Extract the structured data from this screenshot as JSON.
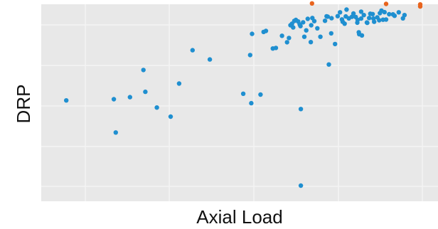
{
  "chart_data": {
    "type": "scatter",
    "title": "",
    "xlabel": "Axial Load",
    "ylabel": "DRP",
    "xlim": [
      0,
      100
    ],
    "ylim": [
      0,
      100
    ],
    "grid": true,
    "background": "#e8e8e8",
    "grid_color": "#f4f4f4",
    "series": [
      {
        "color": "#1f8fd0",
        "points": [
          [
            5.4,
            49.9
          ],
          [
            17.8,
            50.6
          ],
          [
            18.3,
            31.3
          ],
          [
            22,
            51.8
          ],
          [
            25.5,
            67.6
          ],
          [
            26,
            54.9
          ],
          [
            29,
            45.8
          ],
          [
            32.6,
            40.5
          ],
          [
            34.8,
            59.7
          ],
          [
            38.3,
            79.1
          ],
          [
            42.8,
            73.7
          ],
          [
            51.5,
            53.8
          ],
          [
            53.3,
            76.3
          ],
          [
            53.6,
            48.3
          ],
          [
            53.8,
            88.6
          ],
          [
            56,
            53.3
          ],
          [
            56.8,
            89.7
          ],
          [
            57.4,
            90.3
          ],
          [
            59.2,
            80.1
          ],
          [
            60,
            80.4
          ],
          [
            61.6,
            87.5
          ],
          [
            62.9,
            83.7
          ],
          [
            63.4,
            86.2
          ],
          [
            63.8,
            93.6
          ],
          [
            64.2,
            94.5
          ],
          [
            64.5,
            92.3
          ],
          [
            64.8,
            96.1
          ],
          [
            65.2,
            96.7
          ],
          [
            65.8,
            95.8
          ],
          [
            66.2,
            94.1
          ],
          [
            66.4,
            93.1
          ],
          [
            66.5,
            44.9
          ],
          [
            66.5,
            0.4
          ],
          [
            67.1,
            95.3
          ],
          [
            67.4,
            86.9
          ],
          [
            67.9,
            90.6
          ],
          [
            68.3,
            97.3
          ],
          [
            69.1,
            83.8
          ],
          [
            69.2,
            93.6
          ],
          [
            69.5,
            97.8
          ],
          [
            70,
            96
          ],
          [
            70.8,
            91.8
          ],
          [
            71.6,
            86.9
          ],
          [
            72.8,
            96.2
          ],
          [
            73.2,
            98.8
          ],
          [
            73.5,
            98.6
          ],
          [
            73.8,
            70.8
          ],
          [
            74.4,
            88.9
          ],
          [
            74.5,
            97.7
          ],
          [
            75.4,
            82.7
          ],
          [
            76.1,
            98.9
          ],
          [
            76.7,
            101.1
          ],
          [
            77.2,
            97
          ],
          [
            77.4,
            95.6
          ],
          [
            77.9,
            94.5
          ],
          [
            78.2,
            98.7
          ],
          [
            78.4,
            102.7
          ],
          [
            79,
            97.6
          ],
          [
            79.8,
            98.5
          ],
          [
            80.2,
            100.4
          ],
          [
            80.8,
            98.4
          ],
          [
            81.2,
            95.1
          ],
          [
            81.3,
            96.7
          ],
          [
            81.6,
            89.5
          ],
          [
            81.7,
            88.4
          ],
          [
            82.2,
            101.5
          ],
          [
            82.2,
            97.5
          ],
          [
            82.4,
            87.7
          ],
          [
            82.9,
            99.5
          ],
          [
            83.7,
            95.2
          ],
          [
            83.8,
            95
          ],
          [
            84.3,
            97.8
          ],
          [
            84.6,
            100.3
          ],
          [
            85.2,
            100.1
          ],
          [
            85.4,
            97.5
          ],
          [
            85.6,
            95.6
          ],
          [
            86.4,
            98.2
          ],
          [
            86.9,
            96.5
          ],
          [
            87.1,
            100.6
          ],
          [
            87.5,
            102.1
          ],
          [
            87.9,
            96.8
          ],
          [
            88.3,
            101.2
          ],
          [
            88.7,
            96.9
          ],
          [
            89.5,
            100
          ],
          [
            90.5,
            99.9
          ],
          [
            90.9,
            99.1
          ],
          [
            92,
            101.1
          ],
          [
            93.1,
            97.6
          ],
          [
            93.5,
            99.5
          ]
        ]
      },
      {
        "color": "#e8641e",
        "points": [
          [
            69.4,
            106.3
          ],
          [
            88.7,
            106
          ],
          [
            97.6,
            105.7
          ],
          [
            97.6,
            104.5
          ]
        ]
      }
    ]
  }
}
